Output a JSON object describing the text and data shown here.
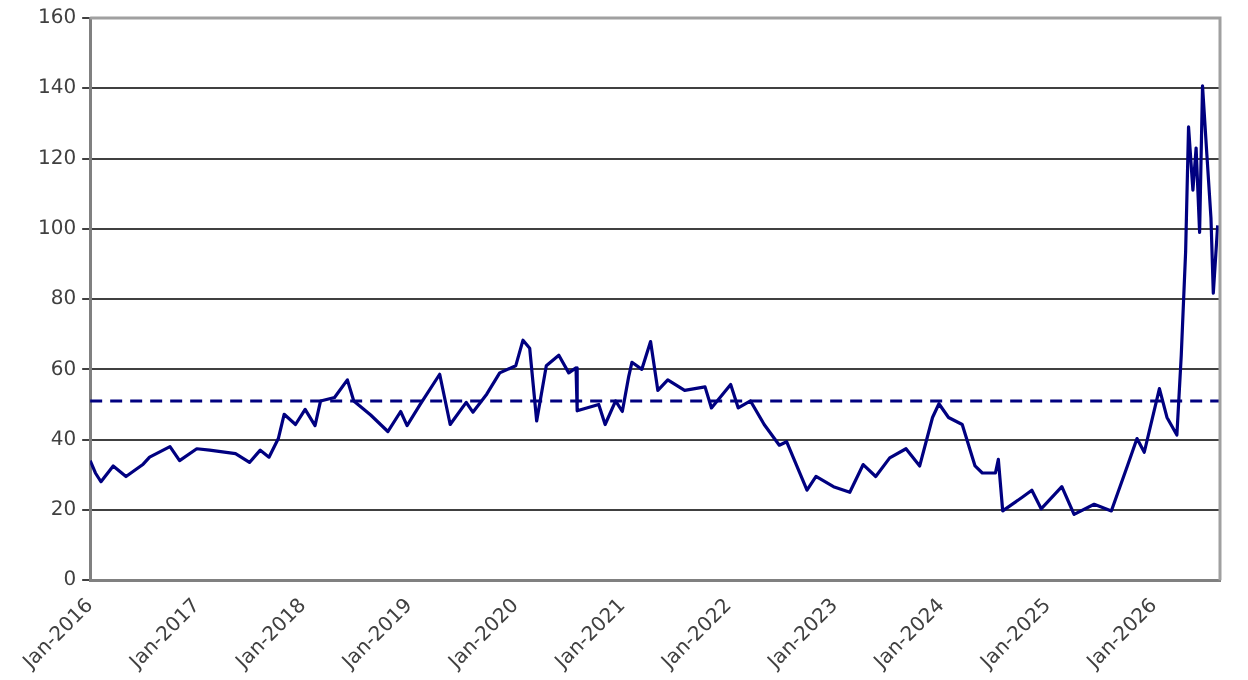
{
  "chart_data": {
    "type": "line",
    "series": [
      {
        "color": "#000080",
        "x": [
          "2016-01-01",
          "2016-01-19",
          "2016-02-07",
          "2016-03-20",
          "2016-05-03",
          "2016-07-01",
          "2016-07-23",
          "2016-10-01",
          "2016-11-03",
          "2017-01-01",
          "2017-02-14",
          "2017-05-14",
          "2017-07-01",
          "2017-08-07",
          "2017-09-06",
          "2017-10-08",
          "2017-10-28",
          "2017-12-06",
          "2018-01-08",
          "2018-02-11",
          "2018-03-02",
          "2018-04-19",
          "2018-06-02",
          "2018-06-24",
          "2018-08-21",
          "2018-10-19",
          "2018-12-02",
          "2018-12-24",
          "2019-02-07",
          "2019-04-15",
          "2019-05-21",
          "2019-07-15",
          "2019-08-07",
          "2019-09-24",
          "2019-11-07",
          "2020-01-01",
          "2020-01-26",
          "2020-02-18",
          "2020-03-13",
          "2020-04-15",
          "2020-05-28",
          "2020-07-01",
          "2020-07-26",
          "2020-07-30",
          "2020-10-12",
          "2020-11-03",
          "2020-12-09",
          "2021-01-01",
          "2021-01-23",
          "2021-02-03",
          "2021-03-09",
          "2021-04-08",
          "2021-05-03",
          "2021-06-06",
          "2021-08-03",
          "2021-10-12",
          "2021-11-03",
          "2022-01-08",
          "2022-02-03",
          "2022-03-17",
          "2022-05-03",
          "2022-06-24",
          "2022-07-19",
          "2022-09-27",
          "2022-10-28",
          "2022-12-27",
          "2023-02-21",
          "2023-04-08",
          "2023-05-21",
          "2023-07-08",
          "2023-09-02",
          "2023-10-19",
          "2023-12-02",
          "2023-12-24",
          "2024-01-26",
          "2024-03-13",
          "2024-04-26",
          "2024-05-21",
          "2024-07-05",
          "2024-07-15",
          "2024-07-30",
          "2024-10-05",
          "2024-11-07",
          "2024-12-09",
          "2025-02-18",
          "2025-04-01",
          "2025-06-09",
          "2025-08-07",
          "2025-08-28",
          "2025-10-01",
          "2025-11-03",
          "2025-11-28",
          "2026-01-19",
          "2026-02-14",
          "2026-03-20",
          "2026-04-04",
          "2026-04-19",
          "2026-04-29",
          "2026-05-14",
          "2026-05-25",
          "2026-06-06",
          "2026-06-16",
          "2026-07-01",
          "2026-07-15",
          "2026-07-23",
          "2026-08-07"
        ],
        "values": [
          34,
          30.5,
          28,
          32.5,
          29.5,
          33,
          35,
          38,
          34,
          37.4,
          37,
          36,
          33.5,
          37,
          35,
          40.3,
          47.2,
          44.3,
          48.6,
          44,
          51,
          52,
          57,
          51,
          47,
          42.3,
          48,
          44,
          50,
          58.6,
          44.3,
          50.6,
          47.8,
          53,
          59,
          61,
          68.3,
          66,
          45.3,
          61,
          64,
          59,
          60.4,
          48.2,
          50,
          44.3,
          51,
          48,
          58,
          62,
          60,
          67.9,
          54,
          57,
          54,
          55,
          49,
          55.7,
          49,
          51,
          44.3,
          38.4,
          39.4,
          25.6,
          29.5,
          26.6,
          25,
          32.9,
          29.5,
          34.8,
          37.4,
          32.5,
          46.3,
          50.2,
          46.3,
          44.3,
          32.5,
          30.5,
          30.5,
          34.4,
          19.7,
          23.6,
          25.6,
          20.3,
          26.6,
          18.7,
          21.6,
          19.7,
          24.6,
          32.5,
          40.3,
          36.4,
          54.5,
          46.3,
          41.3,
          64,
          93.5,
          129,
          111,
          123,
          99,
          140.7,
          121,
          103,
          81.7,
          101
        ]
      }
    ],
    "xlim": [
      "2016-01-01",
      "2026-08-15"
    ],
    "xticks": [
      {
        "value": "2016-01-01",
        "label": "Jan-2016"
      },
      {
        "value": "2017-01-01",
        "label": "Jan-2017"
      },
      {
        "value": "2018-01-01",
        "label": "Jan-2018"
      },
      {
        "value": "2019-01-01",
        "label": "Jan-2019"
      },
      {
        "value": "2020-01-01",
        "label": "Jan-2020"
      },
      {
        "value": "2021-01-01",
        "label": "Jan-2021"
      },
      {
        "value": "2022-01-01",
        "label": "Jan-2022"
      },
      {
        "value": "2023-01-01",
        "label": "Jan-2023"
      },
      {
        "value": "2024-01-01",
        "label": "Jan-2024"
      },
      {
        "value": "2025-01-01",
        "label": "Jan-2025"
      },
      {
        "value": "2026-01-01",
        "label": "Jan-2026"
      }
    ],
    "ylim": [
      0,
      160
    ],
    "yticks": [
      0,
      20,
      40,
      60,
      80,
      100,
      120,
      140,
      160
    ],
    "grid": "y",
    "legend": false,
    "marker": "none",
    "line_style": "solid",
    "ref_lines": [
      {
        "axis": "y",
        "value": 51,
        "color": "#000080",
        "line_style": "dashed"
      }
    ]
  }
}
